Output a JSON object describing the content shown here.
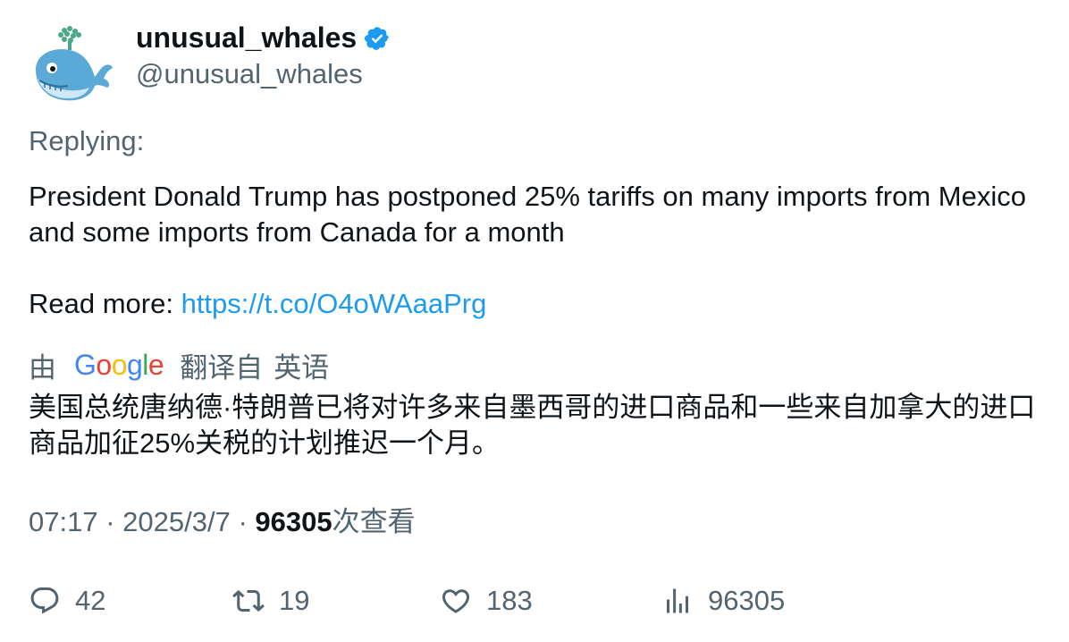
{
  "author": {
    "display_name": "unusual_whales",
    "handle": "@unusual_whales",
    "verified": true,
    "avatar_icon": "whale-icon"
  },
  "replying_label": "Replying:",
  "tweet": {
    "text_line": "President Donald Trump has postponed 25% tariffs on many imports from Mexico and some imports from Canada for a month",
    "read_more_label": "Read more: ",
    "link_text": "https://t.co/O4oWAaaPrg"
  },
  "translation": {
    "by_label": "由",
    "provider": "Google",
    "translated_from": "翻译自",
    "language": "英语",
    "text": "美国总统唐纳德·特朗普已将对许多来自墨西哥的进口商品和一些来自加拿大的进口商品加征25%关税的计划推迟一个月。"
  },
  "meta": {
    "time": "07:17",
    "date": "2025/3/7",
    "view_count": "96305",
    "views_label": "次查看"
  },
  "actions": {
    "replies": "42",
    "retweets": "19",
    "likes": "183",
    "views": "96305"
  },
  "colors": {
    "text": "#0f1419",
    "secondary": "#536471",
    "link": "#1d9bf0",
    "verified": "#1d9bf0"
  }
}
